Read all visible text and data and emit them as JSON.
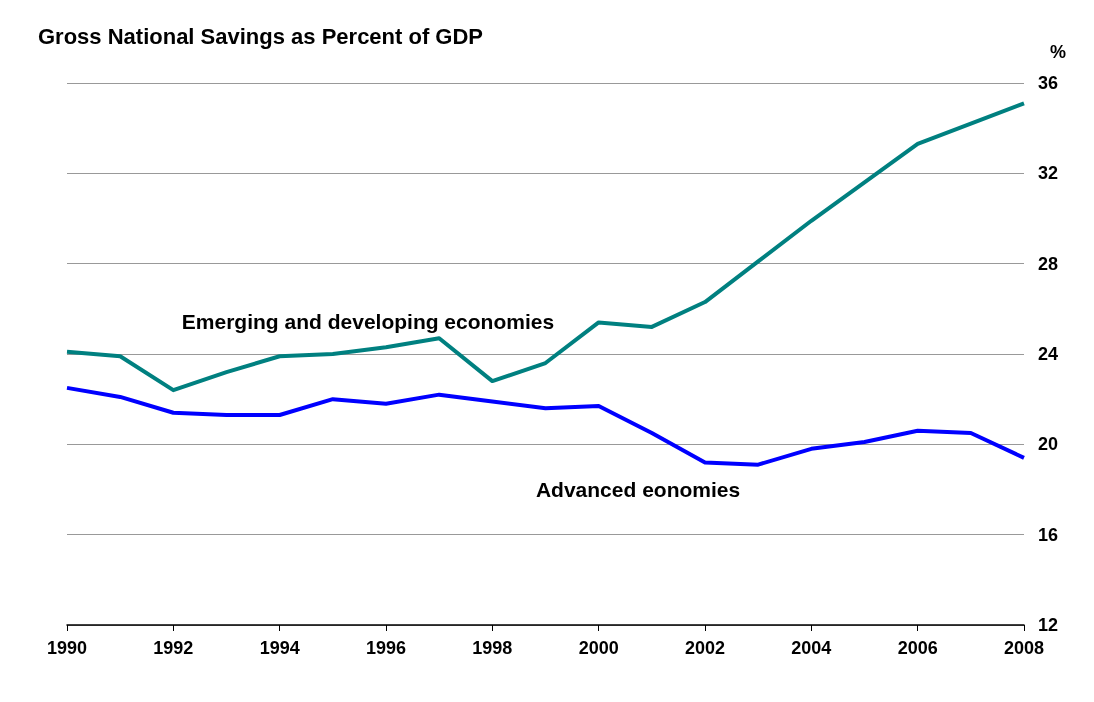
{
  "chart_data": {
    "type": "line",
    "title": "Gross National Savings as Percent of GDP",
    "ylabel": "%",
    "x": [
      1990,
      1991,
      1992,
      1993,
      1994,
      1995,
      1996,
      1997,
      1998,
      1999,
      2000,
      2001,
      2002,
      2003,
      2004,
      2005,
      2006,
      2007,
      2008
    ],
    "series": [
      {
        "name": "Emerging and developing economies",
        "color": "#008080",
        "values": [
          24.1,
          23.9,
          22.4,
          23.2,
          23.9,
          24.0,
          24.3,
          24.7,
          22.8,
          23.6,
          25.4,
          25.2,
          26.3,
          28.1,
          29.9,
          31.6,
          33.3,
          34.2,
          35.1
        ]
      },
      {
        "name": "Advanced eonomies",
        "color": "#0000ff",
        "values": [
          22.5,
          22.1,
          21.4,
          21.3,
          21.3,
          22.0,
          21.8,
          22.2,
          21.9,
          21.6,
          21.7,
          20.5,
          19.2,
          19.1,
          19.8,
          20.1,
          20.6,
          20.5,
          19.4
        ]
      }
    ],
    "xlim": [
      1990,
      2008
    ],
    "xticks": [
      1990,
      1992,
      1994,
      1996,
      1998,
      2000,
      2002,
      2004,
      2006,
      2008
    ],
    "ylim": [
      12,
      36
    ],
    "yticks": [
      12,
      16,
      20,
      24,
      28,
      32,
      36
    ],
    "grid": "y",
    "legend": false,
    "marker": "none",
    "line_style": "solid"
  }
}
